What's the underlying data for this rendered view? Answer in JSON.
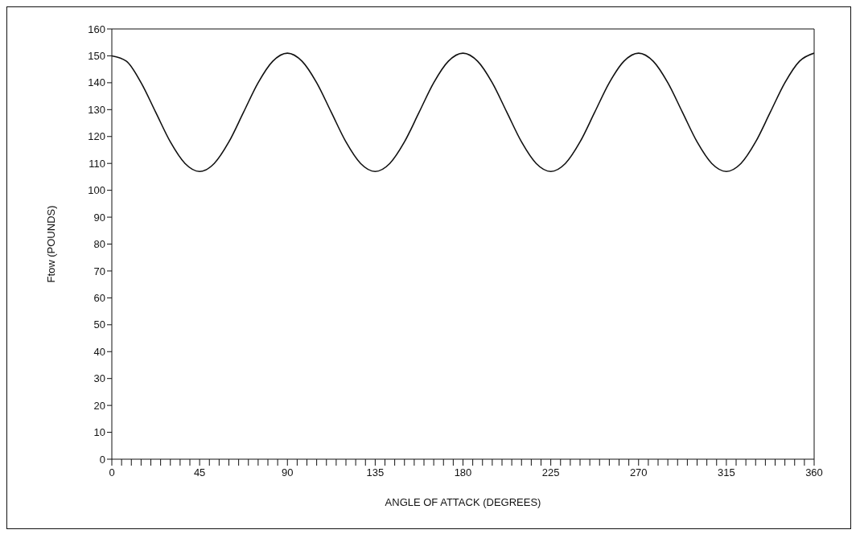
{
  "chart_data": {
    "type": "line",
    "xlabel": "ANGLE OF ATTACK   (DEGREES)",
    "ylabel": "Ftow   (POUNDS)",
    "x": [
      0,
      7.5,
      15,
      22.5,
      30,
      37.5,
      45,
      52.5,
      60,
      67.5,
      75,
      82.5,
      90,
      97.5,
      105,
      112.5,
      120,
      127.5,
      135,
      142.5,
      150,
      157.5,
      165,
      172.5,
      180,
      187.5,
      195,
      202.5,
      210,
      217.5,
      225,
      232.5,
      240,
      247.5,
      255,
      262.5,
      270,
      277.5,
      285,
      292.5,
      300,
      307.5,
      315,
      322.5,
      330,
      337.5,
      345,
      352.5,
      360
    ],
    "series": [
      {
        "color": "#111111",
        "values": [
          150,
          148,
          140,
          129,
          118,
          110,
          107,
          110,
          118,
          129,
          140,
          148,
          151,
          148,
          140,
          129,
          118,
          110,
          107,
          110,
          118,
          129,
          140,
          148,
          151,
          148,
          140,
          129,
          118,
          110,
          107,
          110,
          118,
          129,
          140,
          148,
          151,
          148,
          140,
          129,
          118,
          110,
          107,
          110,
          118,
          129,
          140,
          148,
          151
        ]
      }
    ],
    "xlim": [
      0,
      360
    ],
    "xticks": [
      0,
      {
        "value": 5,
        "label": null
      },
      {
        "value": 10,
        "label": null
      },
      {
        "value": 15,
        "label": null
      },
      {
        "value": 20,
        "label": null
      },
      {
        "value": 25,
        "label": null
      },
      {
        "value": 30,
        "label": null
      },
      {
        "value": 35,
        "label": null
      },
      {
        "value": 40,
        "label": null
      },
      45,
      {
        "value": 50,
        "label": null
      },
      {
        "value": 55,
        "label": null
      },
      {
        "value": 60,
        "label": null
      },
      {
        "value": 65,
        "label": null
      },
      {
        "value": 70,
        "label": null
      },
      {
        "value": 75,
        "label": null
      },
      {
        "value": 80,
        "label": null
      },
      {
        "value": 85,
        "label": null
      },
      90,
      {
        "value": 95,
        "label": null
      },
      {
        "value": 100,
        "label": null
      },
      {
        "value": 105,
        "label": null
      },
      {
        "value": 110,
        "label": null
      },
      {
        "value": 115,
        "label": null
      },
      {
        "value": 120,
        "label": null
      },
      {
        "value": 125,
        "label": null
      },
      {
        "value": 130,
        "label": null
      },
      135,
      {
        "value": 140,
        "label": null
      },
      {
        "value": 145,
        "label": null
      },
      {
        "value": 150,
        "label": null
      },
      {
        "value": 155,
        "label": null
      },
      {
        "value": 160,
        "label": null
      },
      {
        "value": 165,
        "label": null
      },
      {
        "value": 170,
        "label": null
      },
      {
        "value": 175,
        "label": null
      },
      180,
      {
        "value": 185,
        "label": null
      },
      {
        "value": 190,
        "label": null
      },
      {
        "value": 195,
        "label": null
      },
      {
        "value": 200,
        "label": null
      },
      {
        "value": 205,
        "label": null
      },
      {
        "value": 210,
        "label": null
      },
      {
        "value": 215,
        "label": null
      },
      {
        "value": 220,
        "label": null
      },
      225,
      {
        "value": 230,
        "label": null
      },
      {
        "value": 235,
        "label": null
      },
      {
        "value": 240,
        "label": null
      },
      {
        "value": 245,
        "label": null
      },
      {
        "value": 250,
        "label": null
      },
      {
        "value": 255,
        "label": null
      },
      {
        "value": 260,
        "label": null
      },
      {
        "value": 265,
        "label": null
      },
      270,
      {
        "value": 275,
        "label": null
      },
      {
        "value": 280,
        "label": null
      },
      {
        "value": 285,
        "label": null
      },
      {
        "value": 290,
        "label": null
      },
      {
        "value": 295,
        "label": null
      },
      {
        "value": 300,
        "label": null
      },
      {
        "value": 305,
        "label": null
      },
      {
        "value": 310,
        "label": null
      },
      315,
      {
        "value": 320,
        "label": null
      },
      {
        "value": 325,
        "label": null
      },
      {
        "value": 330,
        "label": null
      },
      {
        "value": 335,
        "label": null
      },
      {
        "value": 340,
        "label": null
      },
      {
        "value": 345,
        "label": null
      },
      {
        "value": 350,
        "label": null
      },
      {
        "value": 355,
        "label": null
      },
      360
    ],
    "ylim": [
      0,
      160
    ],
    "yticks": [
      0,
      10,
      20,
      30,
      40,
      50,
      60,
      70,
      80,
      90,
      100,
      110,
      120,
      130,
      140,
      150,
      160
    ],
    "grid": false,
    "legend": false,
    "marker": "none",
    "line_style": "solid"
  }
}
